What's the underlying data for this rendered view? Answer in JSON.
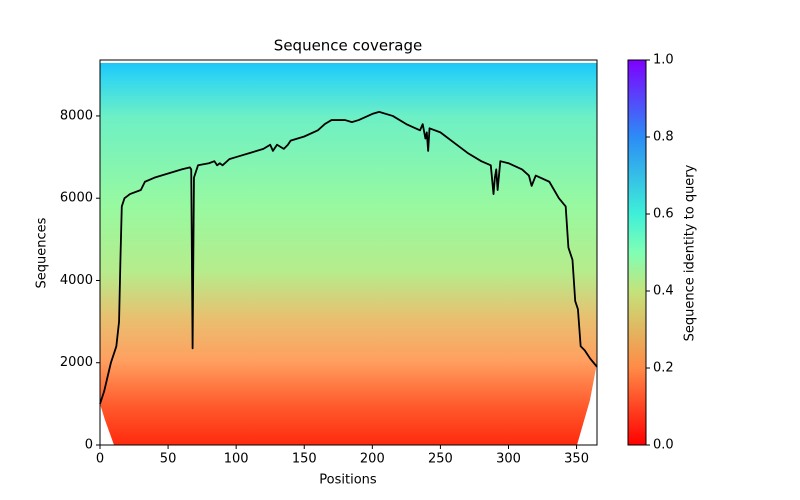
{
  "chart_data": {
    "type": "line",
    "title": "Sequence coverage",
    "x_label": "Positions",
    "y_label": "Sequences",
    "x": [
      0,
      3,
      8,
      12,
      14,
      15,
      16,
      18,
      22,
      30,
      33,
      40,
      50,
      60,
      66,
      67,
      68,
      69,
      70,
      72,
      80,
      84,
      86,
      88,
      90,
      95,
      100,
      110,
      120,
      125,
      127,
      130,
      135,
      138,
      140,
      150,
      160,
      165,
      170,
      180,
      185,
      190,
      200,
      205,
      215,
      225,
      235,
      237,
      239,
      240,
      241,
      242,
      250,
      260,
      270,
      280,
      287,
      289,
      290,
      291,
      292,
      294,
      300,
      310,
      315,
      317,
      320,
      330,
      337,
      342,
      344,
      347,
      349,
      351,
      353,
      356,
      360,
      365
    ],
    "values": [
      1000,
      1300,
      2000,
      2400,
      3000,
      4500,
      5800,
      6000,
      6100,
      6200,
      6400,
      6500,
      6600,
      6700,
      6750,
      6700,
      2350,
      6500,
      6600,
      6800,
      6850,
      6900,
      6800,
      6850,
      6800,
      6950,
      7000,
      7100,
      7200,
      7300,
      7150,
      7300,
      7200,
      7300,
      7400,
      7500,
      7650,
      7800,
      7900,
      7900,
      7850,
      7900,
      8050,
      8100,
      8000,
      7800,
      7650,
      7800,
      7450,
      7600,
      7150,
      7700,
      7600,
      7350,
      7100,
      6900,
      6800,
      6100,
      6500,
      6700,
      6200,
      6900,
      6850,
      6700,
      6550,
      6300,
      6550,
      6400,
      6000,
      5800,
      4800,
      4500,
      3500,
      3300,
      2400,
      2300,
      2100,
      1900
    ],
    "color": "#000000",
    "xlim": [
      0,
      365
    ],
    "xticks": [
      0,
      50,
      100,
      150,
      200,
      250,
      300,
      350
    ],
    "ylim": [
      0,
      9360
    ],
    "yticks": [
      0,
      2000,
      4000,
      6000,
      8000
    ],
    "colorbar": {
      "label": "Sequence identity to query",
      "ylim": [
        0,
        1
      ],
      "yticks": [
        {
          "value": 0,
          "label": "0.0"
        },
        0.2,
        0.4,
        0.6,
        0.8,
        {
          "value": 1,
          "label": "1.0"
        }
      ]
    }
  }
}
